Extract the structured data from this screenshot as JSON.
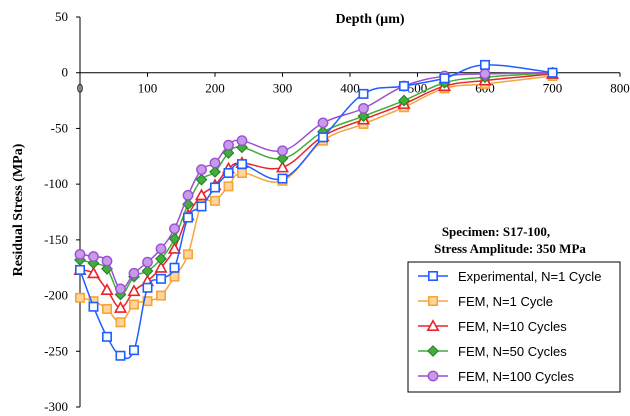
{
  "chart_data": {
    "type": "line",
    "title": "",
    "xlabel": "Depth (µm)",
    "ylabel": "Residual Stress (MPa)",
    "xlim": [
      0,
      800
    ],
    "ylim": [
      -300,
      50
    ],
    "xticks": [
      0,
      100,
      200,
      300,
      400,
      500,
      600,
      700,
      800
    ],
    "yticks": [
      50,
      0,
      -50,
      -100,
      -150,
      -200,
      -250,
      -300
    ],
    "grid": false,
    "legend_position": "bottom-right",
    "annotation": [
      "Specimen: S17-100,",
      "Stress Amplitude: 350 MPa"
    ],
    "series": [
      {
        "name": "Experimental, N=1 Cycle",
        "color": "#1f5fff",
        "marker": "square",
        "x": [
          0,
          20,
          40,
          60,
          80,
          100,
          120,
          140,
          160,
          180,
          200,
          220,
          240,
          300,
          360,
          420,
          480,
          540,
          600,
          700
        ],
        "y": [
          -177,
          -210,
          -237,
          -254,
          -249,
          -193,
          -185,
          -175,
          -130,
          -120,
          -103,
          -90,
          -82,
          -95,
          -58,
          -19,
          -12,
          -5,
          7,
          0
        ]
      },
      {
        "name": "FEM, N=1 Cycle",
        "color": "#f5a53d",
        "marker": "square",
        "x": [
          0,
          20,
          40,
          60,
          80,
          100,
          120,
          140,
          160,
          180,
          200,
          220,
          240,
          300,
          360,
          420,
          480,
          540,
          600,
          700
        ],
        "y": [
          -202,
          -205,
          -212,
          -224,
          -208,
          -205,
          -200,
          -183,
          -163,
          -118,
          -115,
          -102,
          -90,
          -97,
          -61,
          -46,
          -31,
          -14,
          -10,
          -3
        ]
      },
      {
        "name": "FEM, N=10 Cycles",
        "color": "#e8232a",
        "marker": "triangle",
        "x": [
          0,
          20,
          40,
          60,
          80,
          100,
          120,
          140,
          160,
          180,
          200,
          220,
          240,
          300,
          360,
          420,
          480,
          540,
          600,
          700
        ],
        "y": [
          -177,
          -180,
          -195,
          -211,
          -196,
          -187,
          -175,
          -158,
          -128,
          -110,
          -101,
          -86,
          -81,
          -85,
          -57,
          -42,
          -28,
          -12,
          -7,
          -1
        ]
      },
      {
        "name": "FEM, N=50 Cycles",
        "color": "#3fae3a",
        "marker": "diamond",
        "x": [
          0,
          20,
          40,
          60,
          80,
          100,
          120,
          140,
          160,
          180,
          200,
          220,
          240,
          300,
          360,
          420,
          480,
          540,
          600,
          700
        ],
        "y": [
          -168,
          -171,
          -176,
          -199,
          -183,
          -178,
          -167,
          -149,
          -118,
          -96,
          -89,
          -72,
          -67,
          -77,
          -53,
          -39,
          -25,
          -9,
          -4,
          0
        ]
      },
      {
        "name": "FEM, N=100 Cycles",
        "color": "#9b4fd6",
        "marker": "circle",
        "x": [
          0,
          20,
          40,
          60,
          80,
          100,
          120,
          140,
          160,
          180,
          200,
          220,
          240,
          300,
          360,
          420,
          480,
          540,
          600,
          700
        ],
        "y": [
          -163,
          -165,
          -169,
          -194,
          -180,
          -170,
          -158,
          -140,
          -110,
          -87,
          -81,
          -65,
          -61,
          -70,
          -45,
          -32,
          -12,
          -3,
          -1,
          0
        ]
      }
    ]
  }
}
